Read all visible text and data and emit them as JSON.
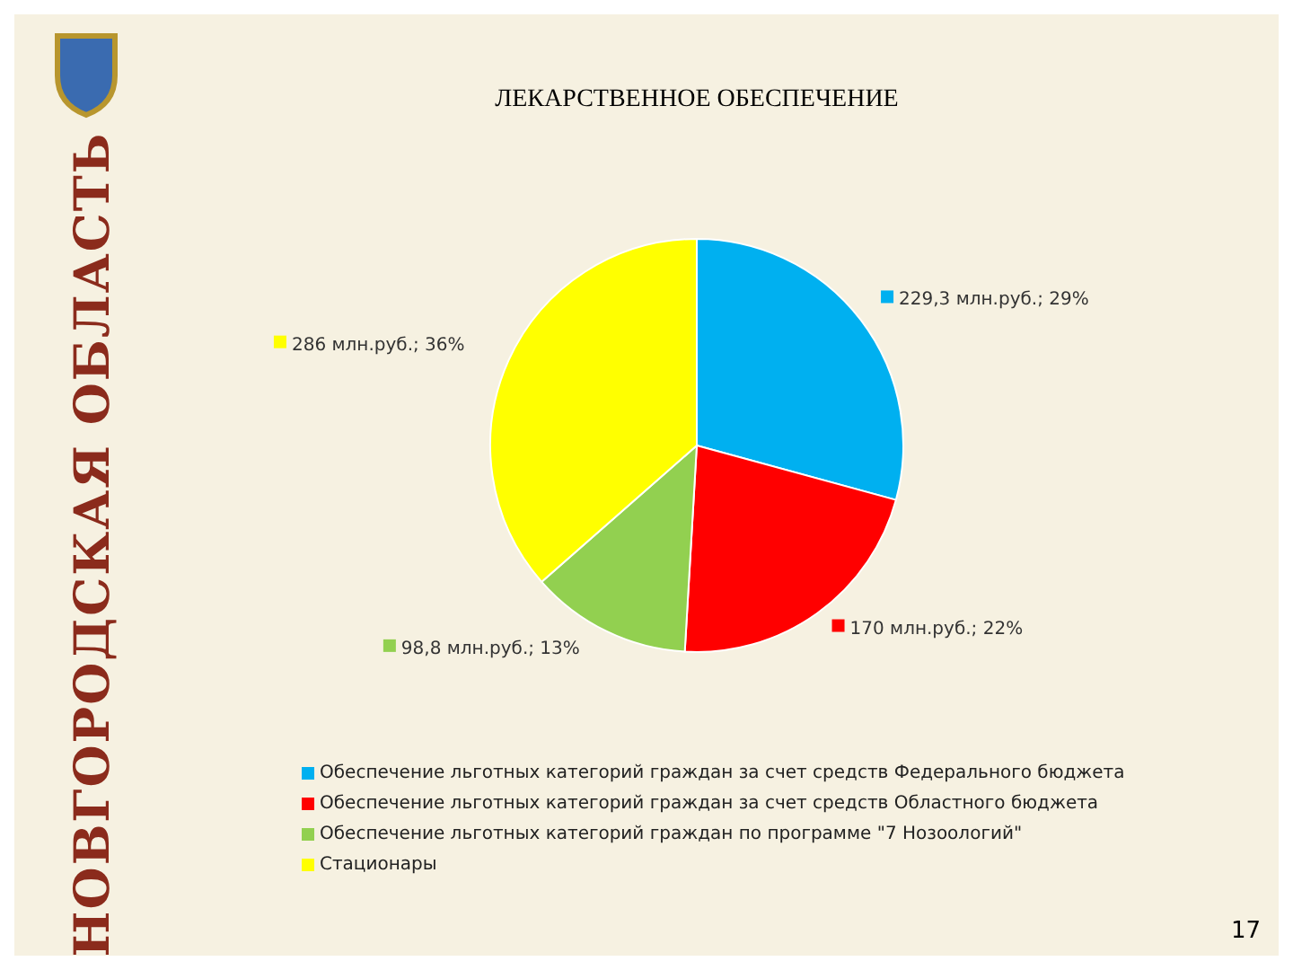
{
  "chart_data": {
    "type": "pie",
    "title": "ЛЕКАРСТВЕННОЕ ОБЕСПЕЧЕНИЕ",
    "categories": [
      "Обеспечение льготных категорий граждан за счет средств Федерального бюджета",
      "Обеспечение льготных категорий граждан за счет средств Областного бюджета",
      "Обеспечение льготных категорий граждан по программе \"7 Нозоологий\"",
      "Стационары"
    ],
    "values": [
      229.3,
      170,
      98.8,
      286
    ],
    "colors": [
      "#00b0f0",
      "#ff0000",
      "#92d050",
      "#ffff00"
    ],
    "value_labels": [
      "229,3 млн.руб.; 29%",
      "170 млн.руб.; 22%",
      "98,8 млн.руб.; 13%",
      "286 млн.руб.; 36%"
    ],
    "legend": "bottom",
    "annotations": [
      "НОВГОРОДСКАЯ ОБЛАСТЬ",
      "17"
    ]
  }
}
